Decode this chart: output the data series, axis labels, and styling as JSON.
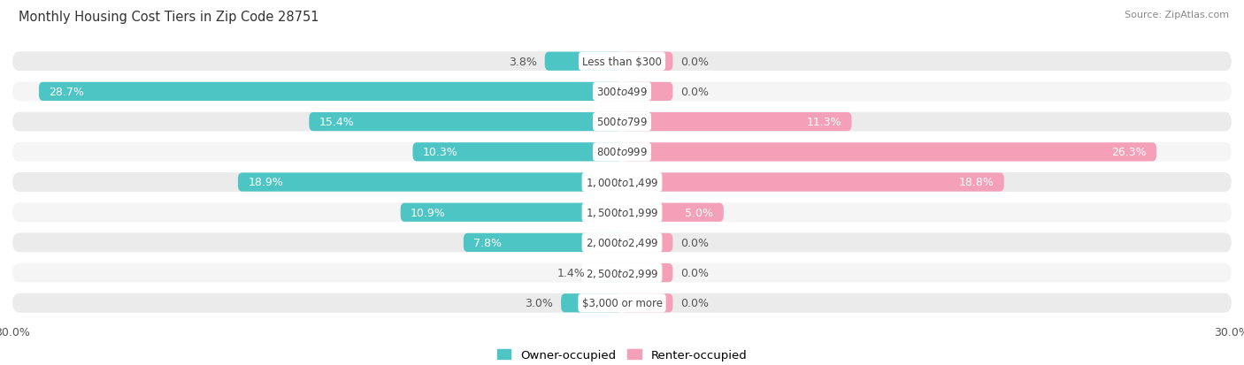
{
  "title": "Monthly Housing Cost Tiers in Zip Code 28751",
  "source": "Source: ZipAtlas.com",
  "categories": [
    "Less than $300",
    "$300 to $499",
    "$500 to $799",
    "$800 to $999",
    "$1,000 to $1,499",
    "$1,500 to $1,999",
    "$2,000 to $2,499",
    "$2,500 to $2,999",
    "$3,000 or more"
  ],
  "owner_values": [
    3.8,
    28.7,
    15.4,
    10.3,
    18.9,
    10.9,
    7.8,
    1.4,
    3.0
  ],
  "renter_values": [
    0.0,
    0.0,
    11.3,
    26.3,
    18.8,
    5.0,
    0.0,
    0.0,
    0.0
  ],
  "renter_stub": [
    2.5,
    2.5,
    0.0,
    0.0,
    0.0,
    0.0,
    2.5,
    2.5,
    2.5
  ],
  "owner_color": "#4DC5C5",
  "renter_color": "#F4A0B8",
  "renter_stub_color": "#F4A0B8",
  "axis_limit": 30.0,
  "row_bg_color": "#EBEBEB",
  "row_bg_color_alt": "#F5F5F5",
  "bar_height": 0.62,
  "label_fontsize": 9.0,
  "cat_fontsize": 8.5,
  "title_fontsize": 10.5,
  "source_fontsize": 8.0,
  "inner_label_threshold": 4.0
}
